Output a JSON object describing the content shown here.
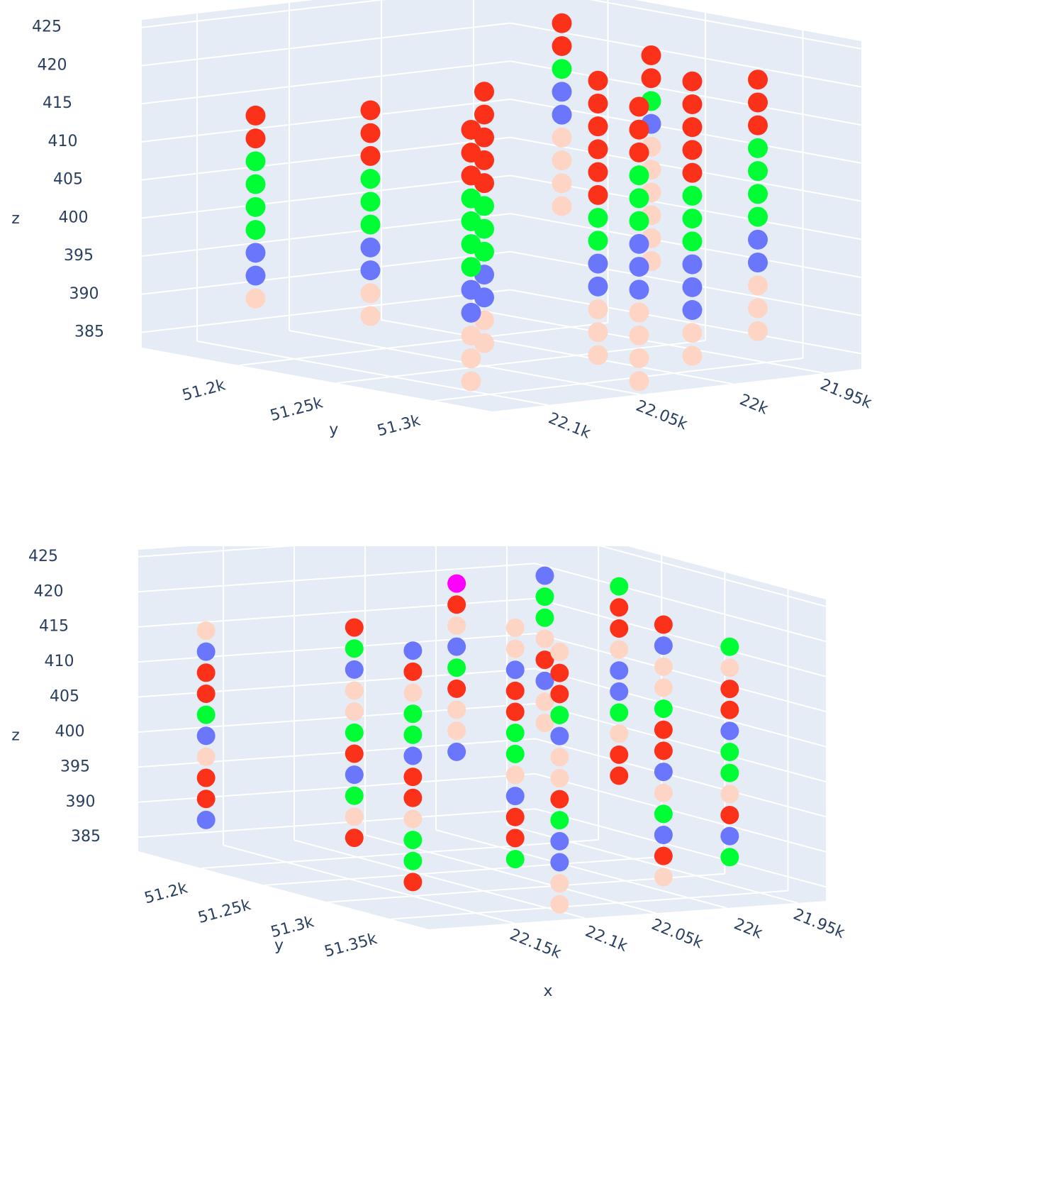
{
  "chart_data": [
    {
      "type": "scatter3d",
      "ylabel": "y",
      "zlabel": "z",
      "xlim": [
        21930,
        22130
      ],
      "ylim": [
        51150,
        51330
      ],
      "zlim": [
        383,
        426
      ],
      "xticks": [
        {
          "value": 21950,
          "label": "21.95k"
        },
        {
          "value": 22000,
          "label": "22k"
        },
        {
          "value": 22050,
          "label": "22.05k"
        },
        {
          "value": 22100,
          "label": "22.1k"
        }
      ],
      "yticks": [
        {
          "value": 51200,
          "label": "51.2k"
        },
        {
          "value": 51250,
          "label": "51.25k"
        },
        {
          "value": 51300,
          "label": "51.3k"
        }
      ],
      "zticks": [
        385,
        390,
        395,
        400,
        405,
        410,
        415,
        420,
        425
      ],
      "grid": true,
      "series": [
        {
          "color": "#fed4c4",
          "x": [
            22100,
            22080,
            22080,
            22050,
            22050,
            22020,
            22020,
            22020,
            21990,
            21990,
            21970,
            21970,
            21970,
            21970,
            21970,
            21970,
            21955,
            21955,
            21955,
            21955,
            21965,
            21965,
            21965,
            22110,
            22110,
            22110,
            22040,
            22040,
            22040,
            22040
          ],
          "y": [
            51180,
            51220,
            51220,
            51250,
            51250,
            51280,
            51280,
            51280,
            51300,
            51300,
            51260,
            51260,
            51260,
            51260,
            51260,
            51260,
            51200,
            51200,
            51200,
            51200,
            51310,
            51310,
            51310,
            51300,
            51300,
            51300,
            51320,
            51320,
            51320,
            51320
          ],
          "z": [
            390,
            392,
            389,
            389,
            386,
            391,
            388,
            385,
            388,
            385,
            410,
            407,
            404,
            401,
            398,
            395,
            408,
            405,
            402,
            399,
            394,
            391,
            388,
            391,
            388,
            385,
            393,
            390,
            387,
            384
          ]
        },
        {
          "color": "#6a76fc",
          "x": [
            22100,
            22100,
            22080,
            22080,
            22050,
            22050,
            22020,
            22020,
            21990,
            21990,
            21990,
            21970,
            21955,
            21955,
            21965,
            21965,
            22110,
            22110,
            22040,
            22040,
            22040
          ],
          "y": [
            51180,
            51180,
            51220,
            51220,
            51250,
            51250,
            51280,
            51280,
            51300,
            51300,
            51300,
            51260,
            51200,
            51200,
            51310,
            51310,
            51300,
            51300,
            51320,
            51320,
            51320
          ],
          "z": [
            396,
            393,
            398,
            395,
            395,
            392,
            397,
            394,
            397,
            394,
            391,
            413,
            414,
            411,
            400,
            397,
            397,
            394,
            402,
            399,
            396
          ]
        },
        {
          "color": "#00fe35",
          "x": [
            22100,
            22100,
            22100,
            22100,
            22080,
            22080,
            22080,
            22050,
            22050,
            22050,
            22020,
            22020,
            21990,
            21990,
            21990,
            21970,
            21955,
            21965,
            21965,
            21965,
            21965,
            22110,
            22110,
            22110,
            22110,
            22040,
            22040,
            22040
          ],
          "y": [
            51180,
            51180,
            51180,
            51180,
            51220,
            51220,
            51220,
            51250,
            51250,
            51250,
            51280,
            51280,
            51300,
            51300,
            51300,
            51260,
            51200,
            51310,
            51310,
            51310,
            51310,
            51300,
            51300,
            51300,
            51300,
            51320,
            51320,
            51320
          ],
          "z": [
            408,
            405,
            402,
            399,
            407,
            404,
            401,
            404,
            401,
            398,
            403,
            400,
            406,
            403,
            400,
            416,
            417,
            412,
            409,
            406,
            403,
            409,
            406,
            403,
            400,
            411,
            408,
            405
          ]
        },
        {
          "color": "#fc3119",
          "x": [
            22100,
            22100,
            22080,
            22080,
            22080,
            22050,
            22050,
            22050,
            22050,
            22050,
            22020,
            22020,
            22020,
            22020,
            22020,
            22020,
            21990,
            21990,
            21990,
            21990,
            21990,
            21970,
            21970,
            21955,
            21955,
            21965,
            21965,
            21965,
            22110,
            22110,
            22110,
            22040,
            22040,
            22040
          ],
          "y": [
            51180,
            51180,
            51220,
            51220,
            51220,
            51250,
            51250,
            51250,
            51250,
            51250,
            51280,
            51280,
            51280,
            51280,
            51280,
            51280,
            51300,
            51300,
            51300,
            51300,
            51300,
            51260,
            51260,
            51200,
            51200,
            51310,
            51310,
            51310,
            51300,
            51300,
            51300,
            51320,
            51320,
            51320
          ],
          "z": [
            414,
            411,
            416,
            413,
            410,
            419,
            416,
            413,
            410,
            407,
            421,
            418,
            415,
            412,
            409,
            406,
            421,
            418,
            415,
            412,
            409,
            422,
            419,
            423,
            420,
            421,
            418,
            415,
            418,
            415,
            412,
            420,
            417,
            414
          ]
        }
      ]
    },
    {
      "type": "scatter3d",
      "xlabel": "x",
      "ylabel": "y",
      "zlabel": "z",
      "xlim": [
        21930,
        22210
      ],
      "ylim": [
        51150,
        51380
      ],
      "zlim": [
        383,
        426
      ],
      "xticks": [
        {
          "value": 21950,
          "label": "21.95k"
        },
        {
          "value": 22000,
          "label": "22k"
        },
        {
          "value": 22050,
          "label": "22.05k"
        },
        {
          "value": 22100,
          "label": "22.1k"
        },
        {
          "value": 22150,
          "label": "22.15k"
        }
      ],
      "yticks": [
        {
          "value": 51200,
          "label": "51.2k"
        },
        {
          "value": 51250,
          "label": "51.25k"
        },
        {
          "value": 51300,
          "label": "51.3k"
        },
        {
          "value": 51350,
          "label": "51.35k"
        }
      ],
      "zticks": [
        385,
        390,
        395,
        400,
        405,
        410,
        415,
        420,
        425
      ],
      "grid": true,
      "series": [
        {
          "color": "#fc3119",
          "x": [
            22180,
            22180,
            22180,
            22180,
            22120,
            22120,
            22120,
            22060,
            22060,
            22060,
            22060,
            22000,
            22000,
            22000,
            22000,
            21960,
            21960,
            21960,
            21960,
            21950,
            22150,
            22150,
            22150,
            22150,
            22100,
            22100,
            22100,
            22030,
            22030,
            21980,
            21980,
            21980
          ],
          "y": [
            51170,
            51170,
            51170,
            51170,
            51220,
            51220,
            51220,
            51280,
            51280,
            51280,
            51280,
            51330,
            51330,
            51330,
            51330,
            51250,
            51250,
            51250,
            51250,
            51180,
            51300,
            51300,
            51300,
            51300,
            51360,
            51360,
            51360,
            51200,
            51200,
            51360,
            51360,
            51360
          ],
          "z": [
            409,
            406,
            394,
            391,
            417,
            399,
            387,
            410,
            407,
            392,
            389,
            421,
            406,
            403,
            388,
            419,
            416,
            398,
            395,
            408,
            415,
            400,
            397,
            385,
            417,
            414,
            399,
            418,
            406,
            413,
            410,
            395
          ]
        },
        {
          "color": "#00fe35",
          "x": [
            22180,
            22120,
            22120,
            22120,
            22060,
            22060,
            22060,
            22000,
            22000,
            21960,
            21960,
            21950,
            21950,
            22150,
            22150,
            22150,
            22150,
            22100,
            22100,
            22030,
            21980,
            21980,
            21980,
            21980
          ],
          "y": [
            51170,
            51220,
            51220,
            51220,
            51280,
            51280,
            51280,
            51330,
            51330,
            51250,
            51250,
            51180,
            51180,
            51300,
            51300,
            51300,
            51300,
            51360,
            51360,
            51200,
            51360,
            51360,
            51360,
            51360
          ],
          "z": [
            403,
            414,
            402,
            393,
            404,
            401,
            386,
            409,
            394,
            422,
            404,
            417,
            414,
            409,
            406,
            391,
            388,
            411,
            396,
            409,
            419,
            404,
            401,
            389
          ]
        },
        {
          "color": "#6a76fc",
          "x": [
            22180,
            22180,
            22180,
            22120,
            22120,
            22060,
            22060,
            22000,
            22000,
            22000,
            21960,
            21960,
            21950,
            21950,
            22150,
            22150,
            22100,
            22100,
            22100,
            22030,
            22030,
            21980,
            21980
          ],
          "y": [
            51170,
            51170,
            51170,
            51220,
            51220,
            51280,
            51280,
            51330,
            51330,
            51330,
            51250,
            51250,
            51180,
            51180,
            51300,
            51300,
            51360,
            51360,
            51360,
            51200,
            51200,
            51360,
            51360
          ],
          "z": [
            412,
            400,
            388,
            411,
            396,
            413,
            395,
            418,
            400,
            391,
            410,
            407,
            420,
            405,
            418,
            403,
            408,
            393,
            390,
            412,
            397,
            407,
            392
          ]
        },
        {
          "color": "#fed4c4",
          "x": [
            22180,
            22180,
            22120,
            22120,
            22120,
            22060,
            22060,
            22060,
            22000,
            22000,
            22000,
            22000,
            21960,
            21960,
            21950,
            21950,
            21950,
            22150,
            22150,
            22100,
            22100,
            22100,
            22100,
            22100,
            22030,
            22030,
            22030,
            21980,
            21980
          ],
          "y": [
            51170,
            51170,
            51220,
            51220,
            51220,
            51280,
            51280,
            51280,
            51330,
            51330,
            51330,
            51330,
            51250,
            51250,
            51180,
            51180,
            51180,
            51300,
            51300,
            51360,
            51360,
            51360,
            51360,
            51360,
            51200,
            51200,
            51200,
            51360,
            51360
          ],
          "z": [
            415,
            397,
            408,
            405,
            390,
            419,
            416,
            398,
            415,
            412,
            397,
            385,
            413,
            401,
            411,
            402,
            399,
            412,
            394,
            420,
            405,
            402,
            387,
            384,
            415,
            403,
            400,
            416,
            398
          ]
        },
        {
          "color": "#ff00fe",
          "x": [
            22030
          ],
          "y": [
            51200
          ],
          "z": [
            421
          ]
        }
      ]
    }
  ]
}
